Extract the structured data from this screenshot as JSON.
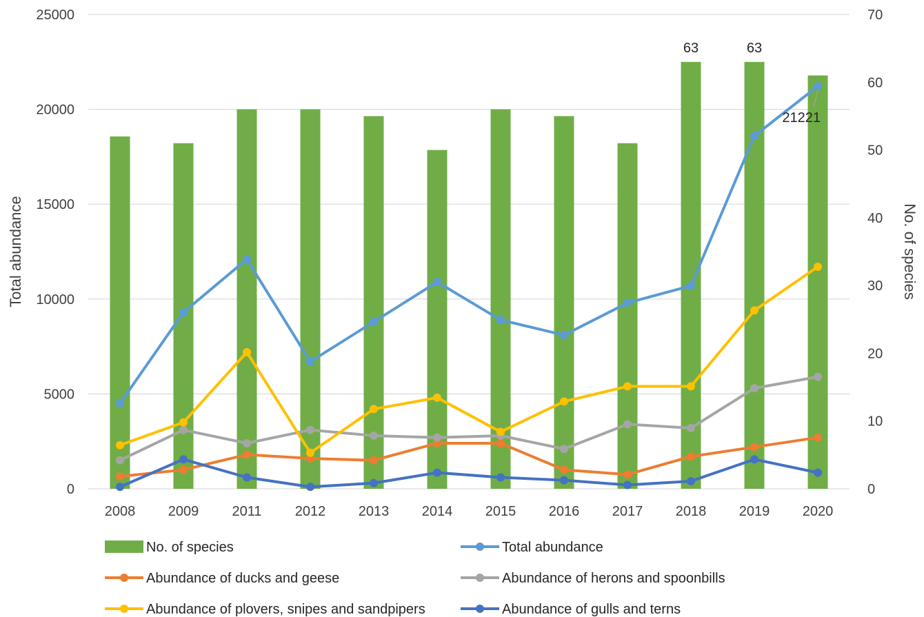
{
  "chart_data": {
    "type": "bar+line",
    "title": "",
    "categories": [
      "2008",
      "2009",
      "2011",
      "2012",
      "2013",
      "2014",
      "2015",
      "2016",
      "2017",
      "2018",
      "2019",
      "2020"
    ],
    "y_left": {
      "label": "Total abundance",
      "min": 0,
      "max": 25000,
      "ticks": [
        "0",
        "5000",
        "10000",
        "15000",
        "20000",
        "25000"
      ]
    },
    "y_right": {
      "label": "No. of species",
      "min": 0,
      "max": 70,
      "ticks": [
        "0",
        "10",
        "20",
        "30",
        "40",
        "50",
        "60",
        "70"
      ]
    },
    "grid": true,
    "legend_position": "bottom",
    "series": [
      {
        "name": "No. of species",
        "type": "bar",
        "axis": "right",
        "color": "#70ad47",
        "values": [
          52,
          51,
          56,
          56,
          55,
          50,
          56,
          55,
          51,
          63,
          63,
          61
        ],
        "labels": {
          "9": "63",
          "10": "63"
        }
      },
      {
        "name": "Total abundance",
        "type": "line",
        "axis": "left",
        "color": "#5b9bd5",
        "values": [
          4500,
          9300,
          12100,
          6700,
          8800,
          10900,
          8900,
          8100,
          9800,
          10700,
          18600,
          21221
        ],
        "labels": {
          "11": "21221"
        }
      },
      {
        "name": "Abundance of ducks and geese",
        "type": "line",
        "axis": "left",
        "color": "#ed7d31",
        "values": [
          650,
          1000,
          1800,
          1600,
          1500,
          2400,
          2400,
          1000,
          750,
          1700,
          2200,
          2700
        ]
      },
      {
        "name": "Abundance of herons and spoonbills",
        "type": "line",
        "axis": "left",
        "color": "#a5a5a5",
        "values": [
          1500,
          3100,
          2400,
          3100,
          2800,
          2700,
          2800,
          2100,
          3400,
          3200,
          5300,
          5900
        ]
      },
      {
        "name": "Abundance of plovers, snipes and sandpipers",
        "type": "line",
        "axis": "left",
        "color": "#ffc000",
        "values": [
          2300,
          3500,
          7200,
          1900,
          4200,
          4800,
          3000,
          4600,
          5400,
          5400,
          9400,
          11700
        ]
      },
      {
        "name": "Abundance of gulls and terns",
        "type": "line",
        "axis": "left",
        "color": "#4472c4",
        "values": [
          100,
          1550,
          600,
          100,
          300,
          850,
          600,
          450,
          200,
          400,
          1550,
          850
        ]
      }
    ]
  }
}
